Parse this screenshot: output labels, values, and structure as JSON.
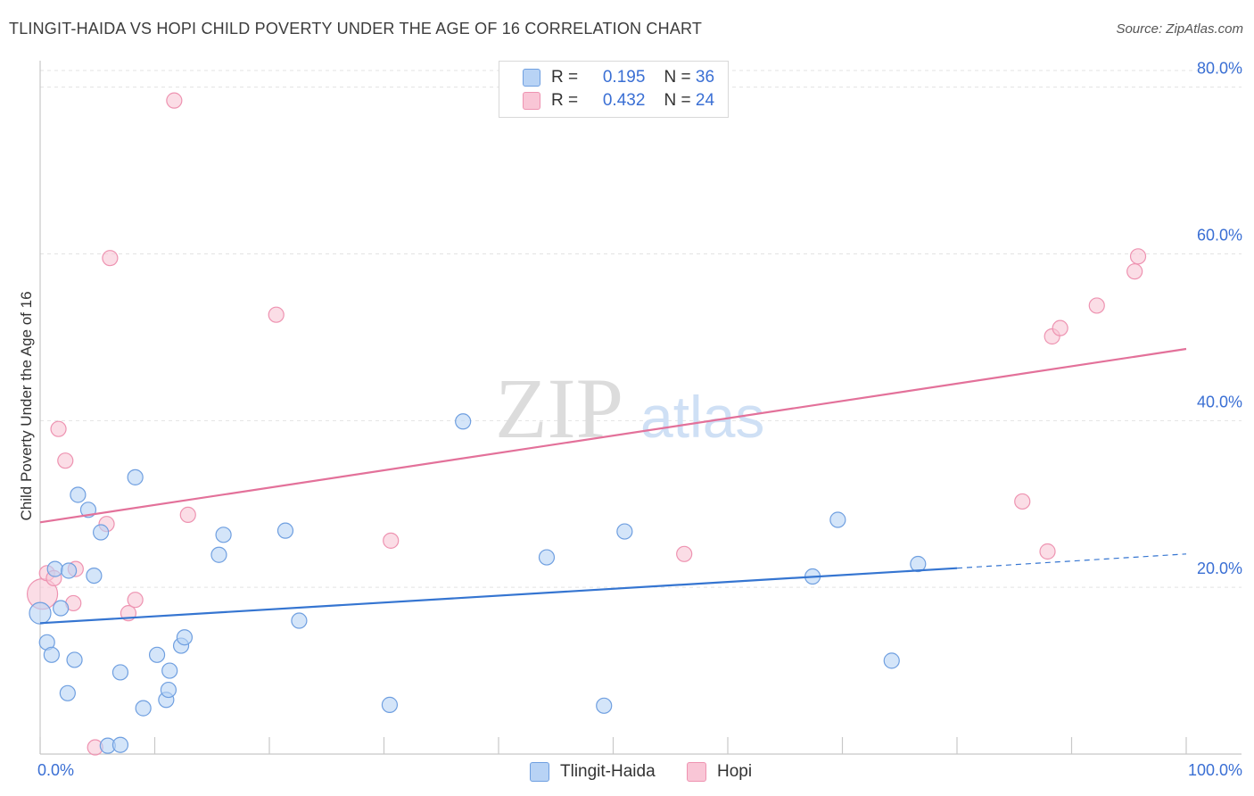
{
  "header": {
    "title": "TLINGIT-HAIDA VS HOPI CHILD POVERTY UNDER THE AGE OF 16 CORRELATION CHART",
    "source": "Source: ZipAtlas.com"
  },
  "legend": {
    "series1": {
      "r_label": "R =",
      "r_value": "0.195",
      "n_label": "N =",
      "n_value": "36"
    },
    "series2": {
      "r_label": "R =",
      "r_value": "0.432",
      "n_label": "N =",
      "n_value": "24"
    }
  },
  "colors": {
    "blue_fill": "#b8d3f5",
    "blue_stroke": "#6f9fe0",
    "blue_line": "#3575d1",
    "pink_fill": "#f9c6d6",
    "pink_stroke": "#ee93b1",
    "pink_line": "#e3719a",
    "tick_text": "#3a6fd4",
    "grid": "#e3e3e3"
  },
  "watermark": {
    "part1": "ZIP",
    "part2": "atlas"
  },
  "chart_data": {
    "type": "scatter",
    "title": "TLINGIT-HAIDA VS HOPI CHILD POVERTY UNDER THE AGE OF 16 CORRELATION CHART",
    "xlabel": "",
    "ylabel": "Child Poverty Under the Age of 16",
    "xlim": [
      0,
      100
    ],
    "ylim": [
      0,
      82
    ],
    "x_tick_labels": [
      "0.0%",
      "100.0%"
    ],
    "y_ticks": [
      20,
      40,
      60,
      80
    ],
    "y_tick_labels": [
      "20.0%",
      "40.0%",
      "60.0%",
      "80.0%"
    ],
    "grid": true,
    "legend_position": "top-center",
    "series": [
      {
        "name": "Tlingit-Haida",
        "R": 0.195,
        "N": 36,
        "points": [
          [
            0,
            16.9
          ],
          [
            0.6,
            13.4
          ],
          [
            1.0,
            11.9
          ],
          [
            1.3,
            22.2
          ],
          [
            1.8,
            17.5
          ],
          [
            2.4,
            7.3
          ],
          [
            2.5,
            22.0
          ],
          [
            3.0,
            11.3
          ],
          [
            3.3,
            31.1
          ],
          [
            4.2,
            29.3
          ],
          [
            4.7,
            21.4
          ],
          [
            5.3,
            26.6
          ],
          [
            5.9,
            1.0
          ],
          [
            7.0,
            9.8
          ],
          [
            7.0,
            1.1
          ],
          [
            8.3,
            33.2
          ],
          [
            9.0,
            5.5
          ],
          [
            10.2,
            11.9
          ],
          [
            11.0,
            6.5
          ],
          [
            11.2,
            7.7
          ],
          [
            11.3,
            10.0
          ],
          [
            12.3,
            13.0
          ],
          [
            12.6,
            14.0
          ],
          [
            15.6,
            23.9
          ],
          [
            16.0,
            26.3
          ],
          [
            21.4,
            26.8
          ],
          [
            22.6,
            16.0
          ],
          [
            30.5,
            5.9
          ],
          [
            36.9,
            39.9
          ],
          [
            44.2,
            23.6
          ],
          [
            49.2,
            5.8
          ],
          [
            51.0,
            26.7
          ],
          [
            67.4,
            21.3
          ],
          [
            69.6,
            28.1
          ],
          [
            74.3,
            11.2
          ],
          [
            76.6,
            22.8
          ]
        ],
        "trend": {
          "x": [
            0,
            80
          ],
          "y": [
            15.7,
            22.3
          ],
          "dashed_to": [
            100,
            24.0
          ]
        }
      },
      {
        "name": "Hopi",
        "R": 0.432,
        "N": 24,
        "points": [
          [
            0.2,
            19.2
          ],
          [
            0.6,
            21.7
          ],
          [
            1.2,
            21.1
          ],
          [
            1.6,
            39.0
          ],
          [
            2.2,
            35.2
          ],
          [
            2.9,
            18.1
          ],
          [
            3.1,
            22.2
          ],
          [
            4.8,
            0.8
          ],
          [
            5.8,
            27.6
          ],
          [
            6.1,
            59.5
          ],
          [
            7.7,
            16.9
          ],
          [
            8.3,
            18.5
          ],
          [
            11.7,
            78.4
          ],
          [
            12.9,
            28.7
          ],
          [
            20.6,
            52.7
          ],
          [
            30.6,
            25.6
          ],
          [
            56.2,
            24.0
          ],
          [
            85.7,
            30.3
          ],
          [
            87.9,
            24.3
          ],
          [
            88.3,
            50.1
          ],
          [
            89.0,
            51.1
          ],
          [
            92.2,
            53.8
          ],
          [
            95.5,
            57.9
          ],
          [
            95.8,
            59.7
          ]
        ],
        "trend": {
          "x": [
            0,
            100
          ],
          "y": [
            27.8,
            48.6
          ]
        }
      }
    ]
  },
  "bottom_legend": {
    "item1": "Tlingit-Haida",
    "item2": "Hopi"
  }
}
